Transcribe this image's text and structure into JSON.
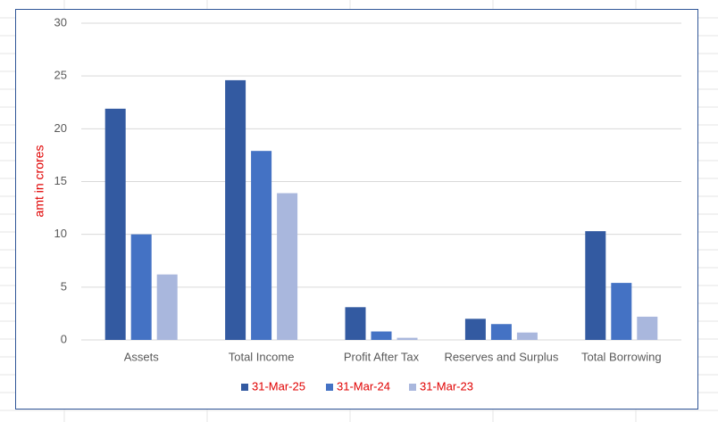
{
  "chart_data": {
    "type": "bar",
    "y_label": "amt in crores",
    "categories": [
      "Assets",
      "Total Income",
      "Profit After Tax",
      "Reserves and Surplus",
      "Total Borrowing"
    ],
    "series": [
      {
        "name": "31-Mar-25",
        "color": "#335aa1",
        "values": [
          21.9,
          24.6,
          3.1,
          2.0,
          10.3
        ]
      },
      {
        "name": "31-Mar-24",
        "color": "#4472c4",
        "values": [
          10,
          17.9,
          0.8,
          1.5,
          5.4
        ]
      },
      {
        "name": "31-Mar-23",
        "color": "#a9b7dd",
        "values": [
          6.2,
          13.9,
          0.2,
          0.7,
          2.2
        ]
      }
    ],
    "ylim": [
      0,
      30
    ],
    "yticks": [
      0,
      5,
      10,
      15,
      20,
      25,
      30
    ],
    "grid": true,
    "legend": "bottom"
  }
}
